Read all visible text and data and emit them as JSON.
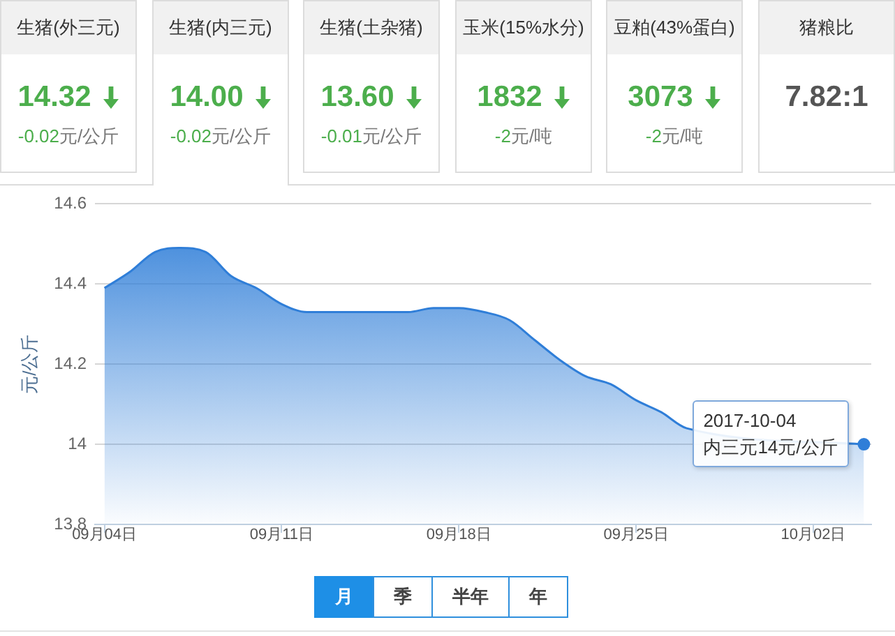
{
  "chart_data": [
    {
      "type": "other",
      "title": "生猪(外三元)",
      "annotations": [
        "14.32",
        "-0.02元/公斤"
      ]
    },
    {
      "type": "other",
      "title": "生猪(内三元)",
      "annotations": [
        "14.00",
        "-0.02元/公斤"
      ]
    },
    {
      "type": "other",
      "title": "生猪(土杂猪)",
      "annotations": [
        "13.60",
        "-0.01元/公斤"
      ]
    },
    {
      "type": "other",
      "title": "玉米(15%水分)",
      "annotations": [
        "1832",
        "-2元/吨"
      ]
    },
    {
      "type": "other",
      "title": "豆粕(43%蛋白)",
      "annotations": [
        "3073",
        "-2元/吨"
      ]
    },
    {
      "type": "other",
      "title": "猪粮比",
      "annotations": [
        "7.82:1"
      ]
    },
    {
      "type": "area",
      "ylabel": "元/公斤",
      "color": "#2f7ed8",
      "x": [
        "2017-09-04",
        "2017-09-05",
        "2017-09-06",
        "2017-09-07",
        "2017-09-08",
        "2017-09-09",
        "2017-09-10",
        "2017-09-11",
        "2017-09-12",
        "2017-09-13",
        "2017-09-14",
        "2017-09-15",
        "2017-09-16",
        "2017-09-17",
        "2017-09-18",
        "2017-09-19",
        "2017-09-20",
        "2017-09-21",
        "2017-09-22",
        "2017-09-23",
        "2017-09-24",
        "2017-09-25",
        "2017-09-26",
        "2017-09-27",
        "2017-09-28",
        "2017-09-29",
        "2017-09-30",
        "2017-10-01",
        "2017-10-02",
        "2017-10-03",
        "2017-10-04"
      ],
      "values": [
        14.39,
        14.43,
        14.48,
        14.49,
        14.48,
        14.42,
        14.39,
        14.35,
        14.33,
        14.33,
        14.33,
        14.33,
        14.33,
        14.34,
        14.34,
        14.33,
        14.31,
        14.26,
        14.21,
        14.17,
        14.15,
        14.11,
        14.08,
        14.04,
        null,
        null,
        null,
        null,
        null,
        null,
        14.0
      ],
      "xlim": [
        "2017-09-03T15:00",
        "2017-10-04T07:00"
      ],
      "xticks": [
        {
          "value": "2017-09-04",
          "label": "09月04日"
        },
        {
          "value": "2017-09-11",
          "label": "09月11日"
        },
        {
          "value": "2017-09-18",
          "label": "09月18日"
        },
        {
          "value": "2017-09-25",
          "label": "09月25日"
        },
        {
          "value": "2017-10-02",
          "label": "10月02日"
        }
      ],
      "ylim": [
        13.8,
        14.6
      ],
      "yticks": [
        13.8,
        14,
        14.2,
        14.4,
        14.6
      ],
      "grid": "y",
      "marker": "none",
      "annotations": [
        {
          "text": "2017-10-04\n内三元14元/公斤",
          "x": "2017-10-04",
          "y": 14
        },
        "月",
        "季",
        "半年",
        "年"
      ]
    }
  ]
}
